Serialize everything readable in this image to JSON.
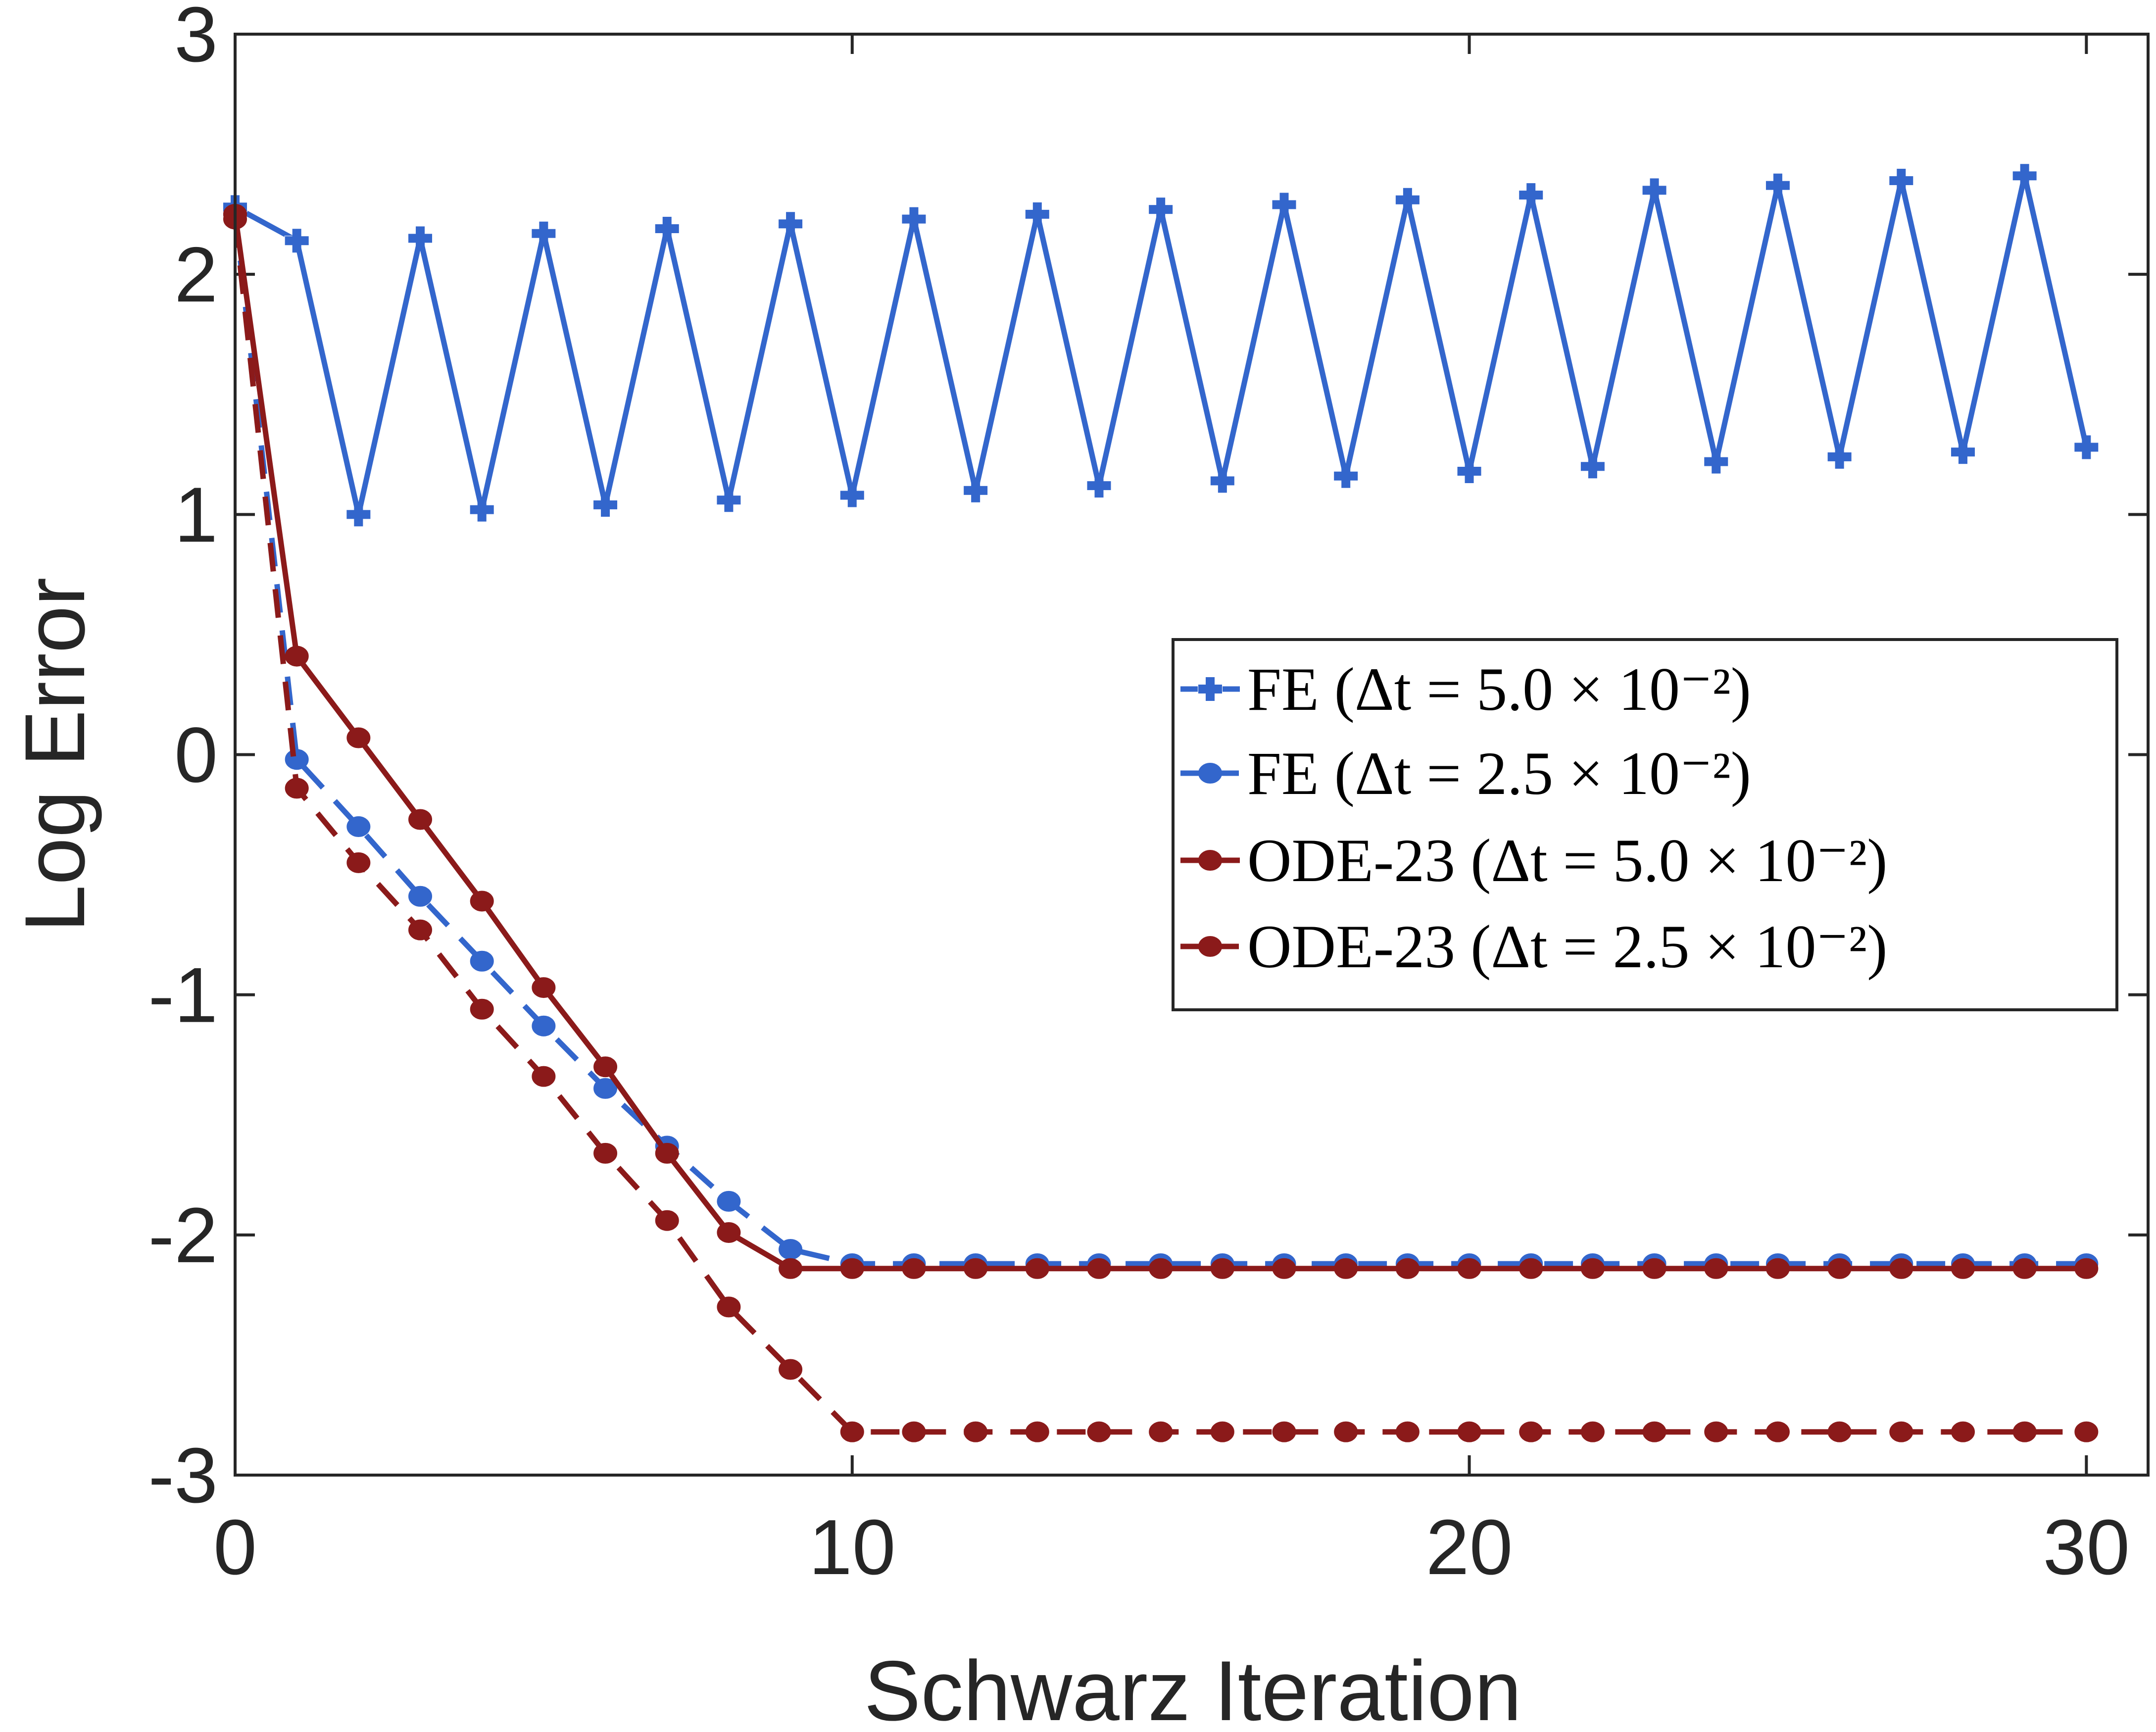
{
  "chart_data": {
    "type": "line",
    "xlabel": "Schwarz Iteration",
    "ylabel": "Log Error",
    "xlim": [
      0,
      31
    ],
    "ylim": [
      -3,
      3
    ],
    "xticks": [
      "0",
      "10",
      "20",
      "30"
    ],
    "yticks": [
      "3",
      "2",
      "1",
      "0",
      "-1",
      "-2",
      "-3"
    ],
    "legend_position": "center-right",
    "series": [
      {
        "name": "FE (Δt = 5.0 × 10⁻²)",
        "color": "#3366cc",
        "style": "solid",
        "marker": "plus",
        "x": [
          0,
          1,
          2,
          3,
          4,
          5,
          6,
          7,
          8,
          9,
          10,
          11,
          12,
          13,
          14,
          15,
          16,
          17,
          18,
          19,
          20,
          21,
          22,
          23,
          24,
          25,
          26,
          27,
          28,
          29,
          30
        ],
        "y": [
          2.28,
          2.14,
          1.0,
          2.15,
          1.02,
          2.17,
          1.04,
          2.19,
          1.06,
          2.21,
          1.08,
          2.23,
          1.1,
          2.25,
          1.12,
          2.27,
          1.14,
          2.29,
          1.16,
          2.31,
          1.18,
          2.33,
          1.2,
          2.35,
          1.22,
          2.37,
          1.24,
          2.39,
          1.26,
          2.41,
          1.28
        ]
      },
      {
        "name": "FE (Δt = 2.5 × 10⁻²)",
        "color": "#3366cc",
        "style": "dashed",
        "marker": "dot",
        "x": [
          0,
          1,
          2,
          3,
          4,
          5,
          6,
          7,
          8,
          9,
          10,
          11,
          12,
          13,
          14,
          15,
          16,
          17,
          18,
          19,
          20,
          21,
          22,
          23,
          24,
          25,
          26,
          27,
          28,
          29,
          30
        ],
        "y": [
          2.25,
          -0.02,
          -0.3,
          -0.59,
          -0.86,
          -1.13,
          -1.39,
          -1.63,
          -1.86,
          -2.06,
          -2.12,
          -2.12,
          -2.12,
          -2.12,
          -2.12,
          -2.12,
          -2.12,
          -2.12,
          -2.12,
          -2.12,
          -2.12,
          -2.12,
          -2.12,
          -2.12,
          -2.12,
          -2.12,
          -2.12,
          -2.12,
          -2.12,
          -2.12,
          -2.12
        ]
      },
      {
        "name": "ODE-23 (Δt = 5.0 × 10⁻²)",
        "color": "#8b1a1a",
        "style": "solid",
        "marker": "dot",
        "x": [
          0,
          1,
          2,
          3,
          4,
          5,
          6,
          7,
          8,
          9,
          10,
          11,
          12,
          13,
          14,
          15,
          16,
          17,
          18,
          19,
          20,
          21,
          22,
          23,
          24,
          25,
          26,
          27,
          28,
          29,
          30
        ],
        "y": [
          2.25,
          0.41,
          0.07,
          -0.27,
          -0.61,
          -0.97,
          -1.3,
          -1.66,
          -1.99,
          -2.14,
          -2.14,
          -2.14,
          -2.14,
          -2.14,
          -2.14,
          -2.14,
          -2.14,
          -2.14,
          -2.14,
          -2.14,
          -2.14,
          -2.14,
          -2.14,
          -2.14,
          -2.14,
          -2.14,
          -2.14,
          -2.14,
          -2.14,
          -2.14,
          -2.14
        ]
      },
      {
        "name": "ODE-23 (Δt = 2.5 × 10⁻²)",
        "color": "#8b1a1a",
        "style": "dashed",
        "marker": "dot",
        "x": [
          0,
          1,
          2,
          3,
          4,
          5,
          6,
          7,
          8,
          9,
          10,
          11,
          12,
          13,
          14,
          15,
          16,
          17,
          18,
          19,
          20,
          21,
          22,
          23,
          24,
          25,
          26,
          27,
          28,
          29,
          30
        ],
        "y": [
          2.23,
          -0.14,
          -0.45,
          -0.73,
          -1.06,
          -1.34,
          -1.66,
          -1.94,
          -2.3,
          -2.56,
          -2.82,
          -2.82,
          -2.82,
          -2.82,
          -2.82,
          -2.82,
          -2.82,
          -2.82,
          -2.82,
          -2.82,
          -2.82,
          -2.82,
          -2.82,
          -2.82,
          -2.82,
          -2.82,
          -2.82,
          -2.82,
          -2.82,
          -2.82,
          -2.82
        ]
      }
    ]
  }
}
